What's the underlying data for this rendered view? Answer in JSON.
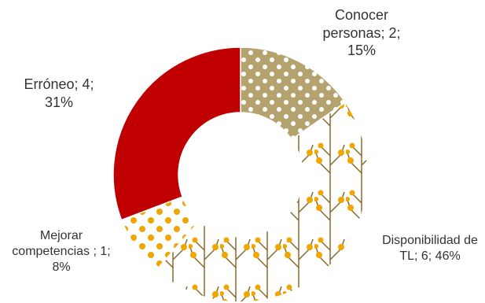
{
  "chart_data": {
    "type": "doughnut",
    "values": [
      2,
      6,
      1,
      4
    ],
    "value_labels": [
      "Conocer personas; 2; 15%",
      "Disponibilidad de TL; 6; 46%",
      "Mejorar competencias ; 1; 8%",
      "Erróneo; 4; 31%"
    ],
    "colors": [
      "#b5a36f",
      "#ffffff",
      "#ffffff",
      "#c00000"
    ]
  }
}
